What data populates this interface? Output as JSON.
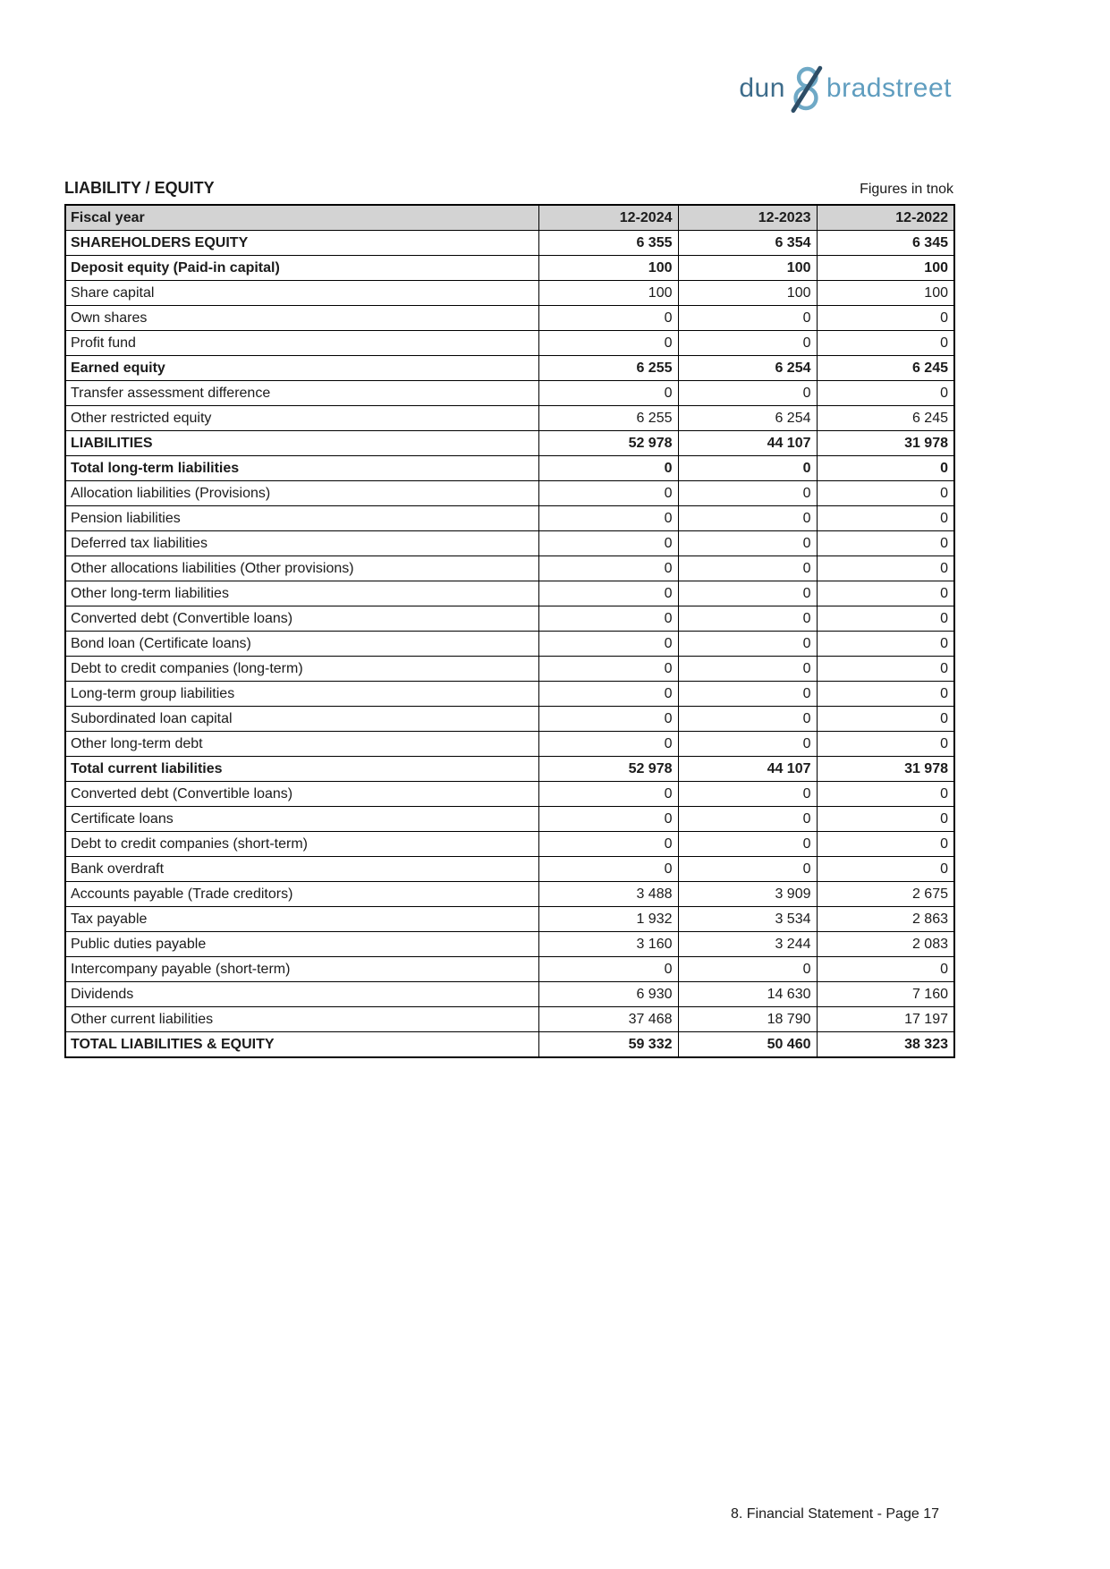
{
  "logo": {
    "dun": "dun",
    "ampersand": "&",
    "bradstreet": "bradstreet",
    "colors": {
      "dun": "#3d6c8b",
      "bradstreet": "#5f9dbf",
      "amp_dark": "#2d4d66",
      "amp_light": "#6fa9c6"
    }
  },
  "header": {
    "title": "LIABILITY / EQUITY",
    "unit_note": "Figures in tnok"
  },
  "table": {
    "header_bg": "#d3d3d3",
    "columns": [
      "Fiscal year",
      "12-2024",
      "12-2023",
      "12-2022"
    ],
    "rows": [
      {
        "label": "SHAREHOLDERS EQUITY",
        "values": [
          "6 355",
          "6 354",
          "6 345"
        ],
        "bold": true
      },
      {
        "label": "Deposit equity (Paid-in capital)",
        "values": [
          "100",
          "100",
          "100"
        ],
        "bold": true
      },
      {
        "label": "Share capital",
        "values": [
          "100",
          "100",
          "100"
        ],
        "bold": false
      },
      {
        "label": "Own shares",
        "values": [
          "0",
          "0",
          "0"
        ],
        "bold": false
      },
      {
        "label": "Profit fund",
        "values": [
          "0",
          "0",
          "0"
        ],
        "bold": false
      },
      {
        "label": "Earned equity",
        "values": [
          "6 255",
          "6 254",
          "6 245"
        ],
        "bold": true
      },
      {
        "label": "Transfer assessment difference",
        "values": [
          "0",
          "0",
          "0"
        ],
        "bold": false
      },
      {
        "label": "Other restricted equity",
        "values": [
          "6 255",
          "6 254",
          "6 245"
        ],
        "bold": false
      },
      {
        "label": "LIABILITIES",
        "values": [
          "52 978",
          "44 107",
          "31 978"
        ],
        "bold": true
      },
      {
        "label": "Total long-term liabilities",
        "values": [
          "0",
          "0",
          "0"
        ],
        "bold": true
      },
      {
        "label": "Allocation liabilities (Provisions)",
        "values": [
          "0",
          "0",
          "0"
        ],
        "bold": false
      },
      {
        "label": "Pension liabilities",
        "values": [
          "0",
          "0",
          "0"
        ],
        "bold": false
      },
      {
        "label": "Deferred tax liabilities",
        "values": [
          "0",
          "0",
          "0"
        ],
        "bold": false
      },
      {
        "label": "Other allocations liabilities (Other provisions)",
        "values": [
          "0",
          "0",
          "0"
        ],
        "bold": false
      },
      {
        "label": "Other long-term liabilities",
        "values": [
          "0",
          "0",
          "0"
        ],
        "bold": false
      },
      {
        "label": "Converted debt (Convertible loans)",
        "values": [
          "0",
          "0",
          "0"
        ],
        "bold": false
      },
      {
        "label": "Bond loan (Certificate loans)",
        "values": [
          "0",
          "0",
          "0"
        ],
        "bold": false
      },
      {
        "label": "Debt to credit companies (long-term)",
        "values": [
          "0",
          "0",
          "0"
        ],
        "bold": false
      },
      {
        "label": "Long-term group liabilities",
        "values": [
          "0",
          "0",
          "0"
        ],
        "bold": false
      },
      {
        "label": "Subordinated loan capital",
        "values": [
          "0",
          "0",
          "0"
        ],
        "bold": false
      },
      {
        "label": "Other long-term debt",
        "values": [
          "0",
          "0",
          "0"
        ],
        "bold": false
      },
      {
        "label": "Total current liabilities",
        "values": [
          "52 978",
          "44 107",
          "31 978"
        ],
        "bold": true
      },
      {
        "label": "Converted debt (Convertible loans)",
        "values": [
          "0",
          "0",
          "0"
        ],
        "bold": false
      },
      {
        "label": "Certificate loans",
        "values": [
          "0",
          "0",
          "0"
        ],
        "bold": false
      },
      {
        "label": "Debt to credit companies (short-term)",
        "values": [
          "0",
          "0",
          "0"
        ],
        "bold": false
      },
      {
        "label": "Bank overdraft",
        "values": [
          "0",
          "0",
          "0"
        ],
        "bold": false
      },
      {
        "label": "Accounts payable (Trade creditors)",
        "values": [
          "3 488",
          "3 909",
          "2 675"
        ],
        "bold": false
      },
      {
        "label": "Tax payable",
        "values": [
          "1 932",
          "3 534",
          "2 863"
        ],
        "bold": false
      },
      {
        "label": "Public duties payable",
        "values": [
          "3 160",
          "3 244",
          "2 083"
        ],
        "bold": false
      },
      {
        "label": "Intercompany payable (short-term)",
        "values": [
          "0",
          "0",
          "0"
        ],
        "bold": false
      },
      {
        "label": "Dividends",
        "values": [
          "6 930",
          "14 630",
          "7 160"
        ],
        "bold": false
      },
      {
        "label": "Other current liabilities",
        "values": [
          "37 468",
          "18 790",
          "17 197"
        ],
        "bold": false
      },
      {
        "label": "TOTAL LIABILITIES & EQUITY",
        "values": [
          "59 332",
          "50 460",
          "38 323"
        ],
        "bold": true
      }
    ]
  },
  "footer": {
    "text": "8. Financial Statement - Page 17"
  }
}
